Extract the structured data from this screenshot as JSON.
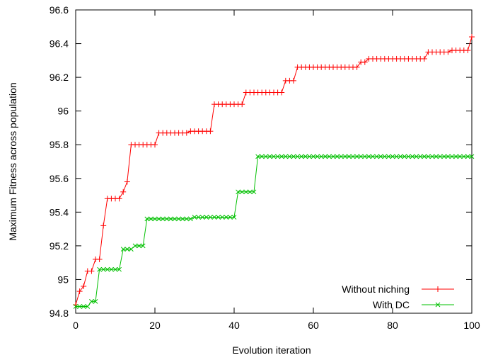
{
  "chart_data": {
    "type": "line",
    "title": "",
    "xlabel": "Evolution iteration",
    "ylabel": "Maximum Fitness across population",
    "xlim": [
      0,
      100
    ],
    "ylim": [
      94.8,
      96.6
    ],
    "xticks": [
      "0",
      "20",
      "40",
      "60",
      "80",
      "100"
    ],
    "yticks": [
      "94.8",
      "95",
      "95.2",
      "95.4",
      "95.6",
      "95.8",
      "96",
      "96.2",
      "96.4",
      "96.6"
    ],
    "grid": false,
    "legend_position": "bottom-right",
    "series": [
      {
        "name": "Without niching",
        "color": "#ff0000",
        "marker": "plus",
        "x": [
          0,
          1,
          2,
          3,
          4,
          5,
          6,
          7,
          8,
          9,
          10,
          11,
          12,
          13,
          14,
          15,
          16,
          17,
          18,
          19,
          20,
          21,
          22,
          23,
          24,
          25,
          26,
          27,
          28,
          29,
          30,
          31,
          32,
          33,
          34,
          35,
          36,
          37,
          38,
          39,
          40,
          41,
          42,
          43,
          44,
          45,
          46,
          47,
          48,
          49,
          50,
          51,
          52,
          53,
          54,
          55,
          56,
          57,
          58,
          59,
          60,
          61,
          62,
          63,
          64,
          65,
          66,
          67,
          68,
          69,
          70,
          71,
          72,
          73,
          74,
          75,
          76,
          77,
          78,
          79,
          80,
          81,
          82,
          83,
          84,
          85,
          86,
          87,
          88,
          89,
          90,
          91,
          92,
          93,
          94,
          95,
          96,
          97,
          98,
          99,
          100
        ],
        "y": [
          94.85,
          94.93,
          94.96,
          95.05,
          95.05,
          95.12,
          95.12,
          95.32,
          95.48,
          95.48,
          95.48,
          95.48,
          95.52,
          95.58,
          95.8,
          95.8,
          95.8,
          95.8,
          95.8,
          95.8,
          95.8,
          95.87,
          95.87,
          95.87,
          95.87,
          95.87,
          95.87,
          95.87,
          95.87,
          95.88,
          95.88,
          95.88,
          95.88,
          95.88,
          95.88,
          96.04,
          96.04,
          96.04,
          96.04,
          96.04,
          96.04,
          96.04,
          96.04,
          96.11,
          96.11,
          96.11,
          96.11,
          96.11,
          96.11,
          96.11,
          96.11,
          96.11,
          96.11,
          96.18,
          96.18,
          96.18,
          96.26,
          96.26,
          96.26,
          96.26,
          96.26,
          96.26,
          96.26,
          96.26,
          96.26,
          96.26,
          96.26,
          96.26,
          96.26,
          96.26,
          96.26,
          96.26,
          96.29,
          96.29,
          96.31,
          96.31,
          96.31,
          96.31,
          96.31,
          96.31,
          96.31,
          96.31,
          96.31,
          96.31,
          96.31,
          96.31,
          96.31,
          96.31,
          96.31,
          96.35,
          96.35,
          96.35,
          96.35,
          96.35,
          96.35,
          96.36,
          96.36,
          96.36,
          96.36,
          96.36,
          96.44
        ]
      },
      {
        "name": "With DC",
        "color": "#00c000",
        "marker": "cross",
        "x": [
          0,
          1,
          2,
          3,
          4,
          5,
          6,
          7,
          8,
          9,
          10,
          11,
          12,
          13,
          14,
          15,
          16,
          17,
          18,
          19,
          20,
          21,
          22,
          23,
          24,
          25,
          26,
          27,
          28,
          29,
          30,
          31,
          32,
          33,
          34,
          35,
          36,
          37,
          38,
          39,
          40,
          41,
          42,
          43,
          44,
          45,
          46,
          47,
          48,
          49,
          50,
          51,
          52,
          53,
          54,
          55,
          56,
          57,
          58,
          59,
          60,
          61,
          62,
          63,
          64,
          65,
          66,
          67,
          68,
          69,
          70,
          71,
          72,
          73,
          74,
          75,
          76,
          77,
          78,
          79,
          80,
          81,
          82,
          83,
          84,
          85,
          86,
          87,
          88,
          89,
          90,
          91,
          92,
          93,
          94,
          95,
          96,
          97,
          98,
          99,
          100
        ],
        "y": [
          94.84,
          94.84,
          94.84,
          94.84,
          94.87,
          94.87,
          95.06,
          95.06,
          95.06,
          95.06,
          95.06,
          95.06,
          95.18,
          95.18,
          95.18,
          95.2,
          95.2,
          95.2,
          95.36,
          95.36,
          95.36,
          95.36,
          95.36,
          95.36,
          95.36,
          95.36,
          95.36,
          95.36,
          95.36,
          95.36,
          95.37,
          95.37,
          95.37,
          95.37,
          95.37,
          95.37,
          95.37,
          95.37,
          95.37,
          95.37,
          95.37,
          95.52,
          95.52,
          95.52,
          95.52,
          95.52,
          95.73,
          95.73,
          95.73,
          95.73,
          95.73,
          95.73,
          95.73,
          95.73,
          95.73,
          95.73,
          95.73,
          95.73,
          95.73,
          95.73,
          95.73,
          95.73,
          95.73,
          95.73,
          95.73,
          95.73,
          95.73,
          95.73,
          95.73,
          95.73,
          95.73,
          95.73,
          95.73,
          95.73,
          95.73,
          95.73,
          95.73,
          95.73,
          95.73,
          95.73,
          95.73,
          95.73,
          95.73,
          95.73,
          95.73,
          95.73,
          95.73,
          95.73,
          95.73,
          95.73,
          95.73,
          95.73,
          95.73,
          95.73,
          95.73,
          95.73,
          95.73,
          95.73,
          95.73,
          95.73,
          95.73
        ]
      }
    ]
  }
}
